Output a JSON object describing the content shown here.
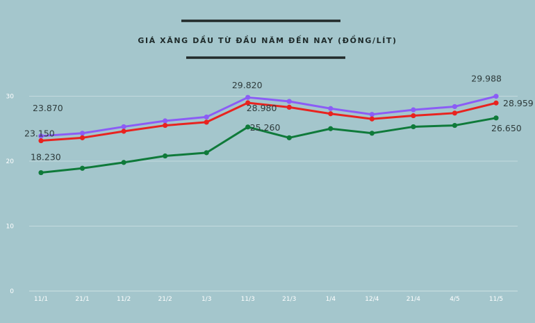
{
  "chart_data": {
    "type": "line",
    "title": "GIÁ XĂNG DẦU TỪ ĐẦU NĂM ĐẾN NAY (ĐỒNG/LÍT)",
    "categories": [
      "11/1",
      "21/1",
      "11/2",
      "21/2",
      "1/3",
      "11/3",
      "21/3",
      "1/4",
      "12/4",
      "21/4",
      "4/5",
      "11/5"
    ],
    "ylim": [
      0,
      32
    ],
    "yticks": [
      0,
      10,
      20,
      30
    ],
    "grid": true,
    "series": [
      {
        "name": "purple",
        "color": "#8b5cf6",
        "values": [
          23.87,
          24.3,
          25.3,
          26.2,
          26.8,
          29.82,
          29.2,
          28.1,
          27.2,
          27.9,
          28.4,
          29.988
        ],
        "labels": [
          {
            "index": 0,
            "text": "23.870"
          },
          {
            "index": 5,
            "text": "29.820"
          },
          {
            "index": 11,
            "text": "29.988"
          }
        ]
      },
      {
        "name": "red",
        "color": "#e8231f",
        "values": [
          23.15,
          23.6,
          24.6,
          25.5,
          26.0,
          28.98,
          28.3,
          27.3,
          26.5,
          27.0,
          27.4,
          28.959
        ],
        "labels": [
          {
            "index": 0,
            "text": "23.150"
          },
          {
            "index": 5,
            "text": "28.980"
          },
          {
            "index": 11,
            "text": "28.959"
          }
        ]
      },
      {
        "name": "green",
        "color": "#0f7a3a",
        "values": [
          18.23,
          18.9,
          19.8,
          20.8,
          21.3,
          25.26,
          23.6,
          25.0,
          24.3,
          25.3,
          25.5,
          26.65
        ],
        "labels": [
          {
            "index": 0,
            "text": "18.230"
          },
          {
            "index": 5,
            "text": "25.260"
          },
          {
            "index": 11,
            "text": "26.650"
          }
        ]
      }
    ]
  }
}
